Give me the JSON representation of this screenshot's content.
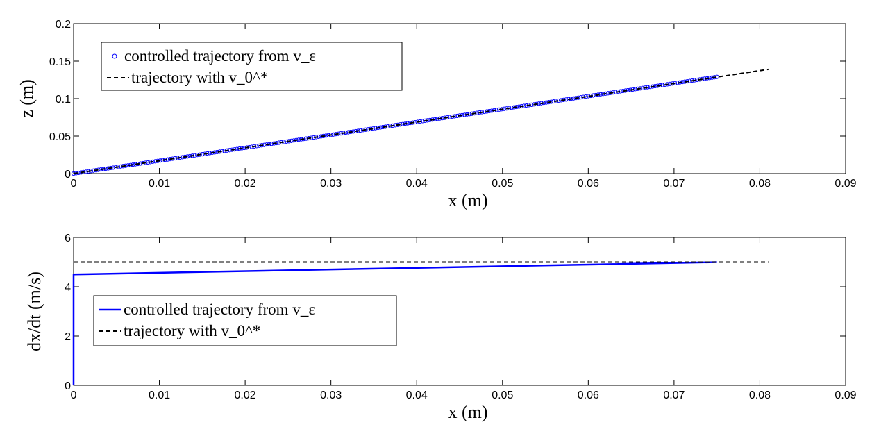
{
  "chart_data": [
    {
      "type": "line",
      "xlabel": "x (m)",
      "ylabel": "z (m)",
      "xlim": [
        0,
        0.09
      ],
      "ylim": [
        0,
        0.2
      ],
      "xticks": [
        "0",
        "0.01",
        "0.02",
        "0.03",
        "0.04",
        "0.05",
        "0.06",
        "0.07",
        "0.08",
        "0.09"
      ],
      "yticks": [
        "0",
        "0.05",
        "0.1",
        "0.15",
        "0.2"
      ],
      "legend_position": "top-left",
      "series": [
        {
          "name": "controlled trajectory from v_ε",
          "style": "circle-markers",
          "color": "#0000ff",
          "x": [
            0,
            0.075
          ],
          "y": [
            0,
            0.129
          ]
        },
        {
          "name": "trajectory with v_0^*",
          "style": "dashed",
          "color": "#000000",
          "x": [
            0,
            0.081
          ],
          "y": [
            0,
            0.139
          ]
        }
      ]
    },
    {
      "type": "line",
      "xlabel": "x (m)",
      "ylabel": "dx/dt (m/s)",
      "xlim": [
        0,
        0.09
      ],
      "ylim": [
        0,
        6
      ],
      "xticks": [
        "0",
        "0.01",
        "0.02",
        "0.03",
        "0.04",
        "0.05",
        "0.06",
        "0.07",
        "0.08",
        "0.09"
      ],
      "yticks": [
        "0",
        "2",
        "4",
        "6"
      ],
      "legend_position": "middle-left",
      "series": [
        {
          "name": "controlled trajectory from v_ε",
          "style": "solid",
          "color": "#0000ff",
          "x": [
            0,
            0,
            0.075
          ],
          "y": [
            0,
            4.5,
            5.0
          ]
        },
        {
          "name": "trajectory with v_0^*",
          "style": "dashed",
          "color": "#000000",
          "x": [
            0,
            0.081
          ],
          "y": [
            5.0,
            5.0
          ]
        }
      ]
    }
  ]
}
